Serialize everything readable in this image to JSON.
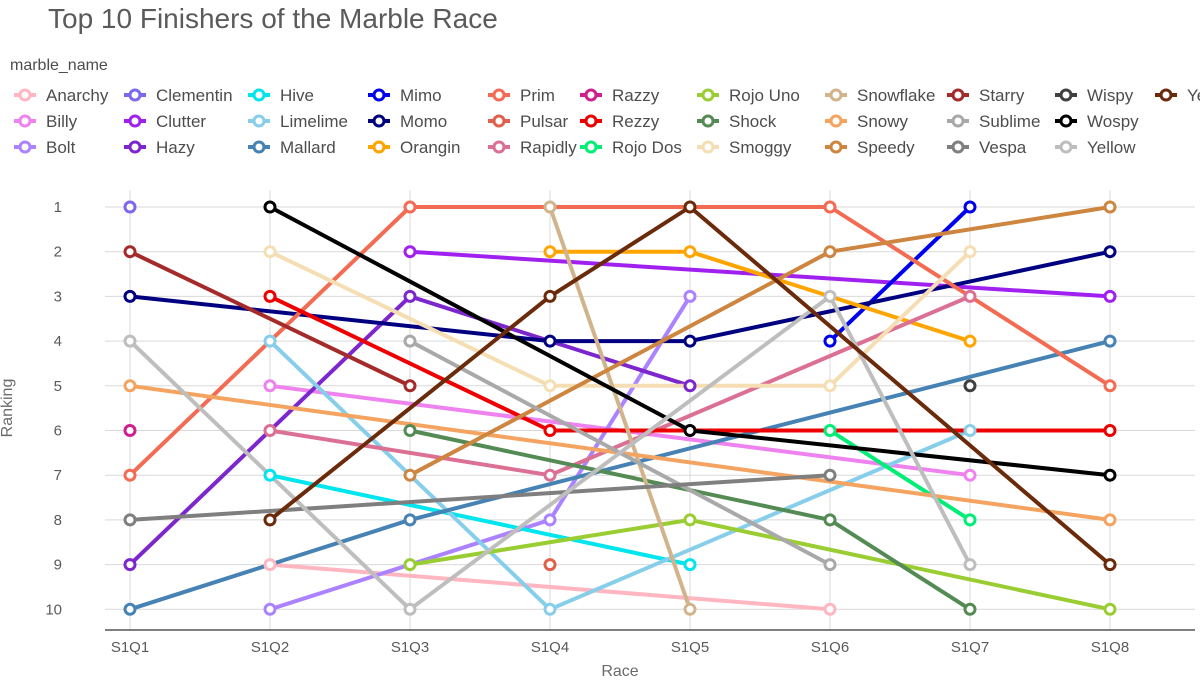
{
  "chart_data": {
    "type": "line",
    "title": "Top 10 Finishers of the Marble Race",
    "xlabel": "Race",
    "ylabel": "Ranking",
    "legend_title": "marble_name",
    "legend_position": "top",
    "categories": [
      "S1Q1",
      "S1Q2",
      "S1Q3",
      "S1Q4",
      "S1Q5",
      "S1Q6",
      "S1Q7",
      "S1Q8"
    ],
    "y_ticks": [
      1,
      2,
      3,
      4,
      5,
      6,
      7,
      8,
      9,
      10
    ],
    "ylim": [
      1,
      10
    ],
    "y_reversed": true,
    "grid": true,
    "series": [
      {
        "name": "Anarchy",
        "color": "#ffb6c1",
        "points": [
          [
            "S1Q2",
            9
          ],
          [
            "S1Q6",
            10
          ]
        ]
      },
      {
        "name": "Billy",
        "color": "#ee82ee",
        "points": [
          [
            "S1Q2",
            5
          ],
          [
            "S1Q7",
            7
          ]
        ]
      },
      {
        "name": "Bolt",
        "color": "#ab82ff",
        "points": [
          [
            "S1Q2",
            10
          ],
          [
            "S1Q4",
            8
          ],
          [
            "S1Q5",
            3
          ]
        ]
      },
      {
        "name": "Clementin",
        "color": "#7b68ee",
        "points": [
          [
            "S1Q1",
            1
          ]
        ]
      },
      {
        "name": "Clutter",
        "color": "#a020f0",
        "points": [
          [
            "S1Q3",
            2
          ],
          [
            "S1Q8",
            3
          ]
        ]
      },
      {
        "name": "Hazy",
        "color": "#7d26cd",
        "points": [
          [
            "S1Q1",
            9
          ],
          [
            "S1Q3",
            3
          ],
          [
            "S1Q5",
            5
          ]
        ]
      },
      {
        "name": "Hive",
        "color": "#00e5ee",
        "points": [
          [
            "S1Q2",
            7
          ],
          [
            "S1Q5",
            9
          ]
        ]
      },
      {
        "name": "Limelime",
        "color": "#87ceeb",
        "points": [
          [
            "S1Q2",
            4
          ],
          [
            "S1Q4",
            10
          ],
          [
            "S1Q7",
            6
          ]
        ]
      },
      {
        "name": "Mallard",
        "color": "#4682b4",
        "points": [
          [
            "S1Q1",
            10
          ],
          [
            "S1Q3",
            8
          ],
          [
            "S1Q8",
            4
          ]
        ]
      },
      {
        "name": "Mimo",
        "color": "#0000ee",
        "points": [
          [
            "S1Q6",
            4
          ],
          [
            "S1Q7",
            1
          ]
        ]
      },
      {
        "name": "Momo",
        "color": "#000080",
        "points": [
          [
            "S1Q1",
            3
          ],
          [
            "S1Q4",
            4
          ],
          [
            "S1Q5",
            4
          ],
          [
            "S1Q8",
            2
          ]
        ]
      },
      {
        "name": "Orangin",
        "color": "#ffa500",
        "points": [
          [
            "S1Q4",
            2
          ],
          [
            "S1Q5",
            2
          ],
          [
            "S1Q7",
            4
          ]
        ]
      },
      {
        "name": "Prim",
        "color": "#f36b52",
        "points": [
          [
            "S1Q1",
            7
          ],
          [
            "S1Q3",
            1
          ],
          [
            "S1Q6",
            1
          ],
          [
            "S1Q8",
            5
          ]
        ]
      },
      {
        "name": "Pulsar",
        "color": "#e0604a",
        "points": [
          [
            "S1Q4",
            9
          ]
        ]
      },
      {
        "name": "Rapidly",
        "color": "#db7093",
        "points": [
          [
            "S1Q2",
            6
          ],
          [
            "S1Q4",
            7
          ],
          [
            "S1Q7",
            3
          ]
        ]
      },
      {
        "name": "Razzy",
        "color": "#d02090",
        "points": [
          [
            "S1Q1",
            6
          ]
        ]
      },
      {
        "name": "Rezzy",
        "color": "#ee0000",
        "points": [
          [
            "S1Q2",
            3
          ],
          [
            "S1Q4",
            6
          ],
          [
            "S1Q8",
            6
          ]
        ]
      },
      {
        "name": "Rojo Dos",
        "color": "#00ee76",
        "points": [
          [
            "S1Q6",
            6
          ],
          [
            "S1Q7",
            8
          ]
        ]
      },
      {
        "name": "Rojo Uno",
        "color": "#9acd32",
        "points": [
          [
            "S1Q3",
            9
          ],
          [
            "S1Q5",
            8
          ],
          [
            "S1Q8",
            10
          ]
        ]
      },
      {
        "name": "Shock",
        "color": "#548b54",
        "points": [
          [
            "S1Q3",
            6
          ],
          [
            "S1Q6",
            8
          ],
          [
            "S1Q7",
            10
          ]
        ]
      },
      {
        "name": "Smoggy",
        "color": "#f5deb3",
        "points": [
          [
            "S1Q2",
            2
          ],
          [
            "S1Q4",
            5
          ],
          [
            "S1Q6",
            5
          ],
          [
            "S1Q7",
            2
          ]
        ]
      },
      {
        "name": "Snowflake",
        "color": "#d2b48c",
        "points": [
          [
            "S1Q4",
            1
          ],
          [
            "S1Q5",
            10
          ]
        ]
      },
      {
        "name": "Snowy",
        "color": "#f4a460",
        "points": [
          [
            "S1Q1",
            5
          ],
          [
            "S1Q8",
            8
          ]
        ]
      },
      {
        "name": "Speedy",
        "color": "#cd853f",
        "points": [
          [
            "S1Q3",
            7
          ],
          [
            "S1Q6",
            2
          ],
          [
            "S1Q8",
            1
          ]
        ]
      },
      {
        "name": "Starry",
        "color": "#a52a2a",
        "points": [
          [
            "S1Q1",
            2
          ],
          [
            "S1Q3",
            5
          ]
        ]
      },
      {
        "name": "Sublime",
        "color": "#a9a9a9",
        "points": [
          [
            "S1Q3",
            4
          ],
          [
            "S1Q6",
            9
          ]
        ]
      },
      {
        "name": "Vespa",
        "color": "#7f7f7f",
        "points": [
          [
            "S1Q1",
            8
          ],
          [
            "S1Q6",
            7
          ]
        ]
      },
      {
        "name": "Wispy",
        "color": "#404040",
        "points": [
          [
            "S1Q7",
            5
          ]
        ]
      },
      {
        "name": "Wospy",
        "color": "#000000",
        "points": [
          [
            "S1Q2",
            1
          ],
          [
            "S1Q5",
            6
          ],
          [
            "S1Q8",
            7
          ]
        ]
      },
      {
        "name": "Yellow",
        "color": "#bebebe",
        "points": [
          [
            "S1Q1",
            4
          ],
          [
            "S1Q3",
            10
          ],
          [
            "S1Q6",
            3
          ],
          [
            "S1Q7",
            9
          ]
        ]
      },
      {
        "name": "Yeti",
        "legend_label": "Ye",
        "color": "#6b2a0a",
        "points": [
          [
            "S1Q2",
            8
          ],
          [
            "S1Q4",
            3
          ],
          [
            "S1Q5",
            1
          ],
          [
            "S1Q8",
            9
          ]
        ]
      }
    ]
  }
}
